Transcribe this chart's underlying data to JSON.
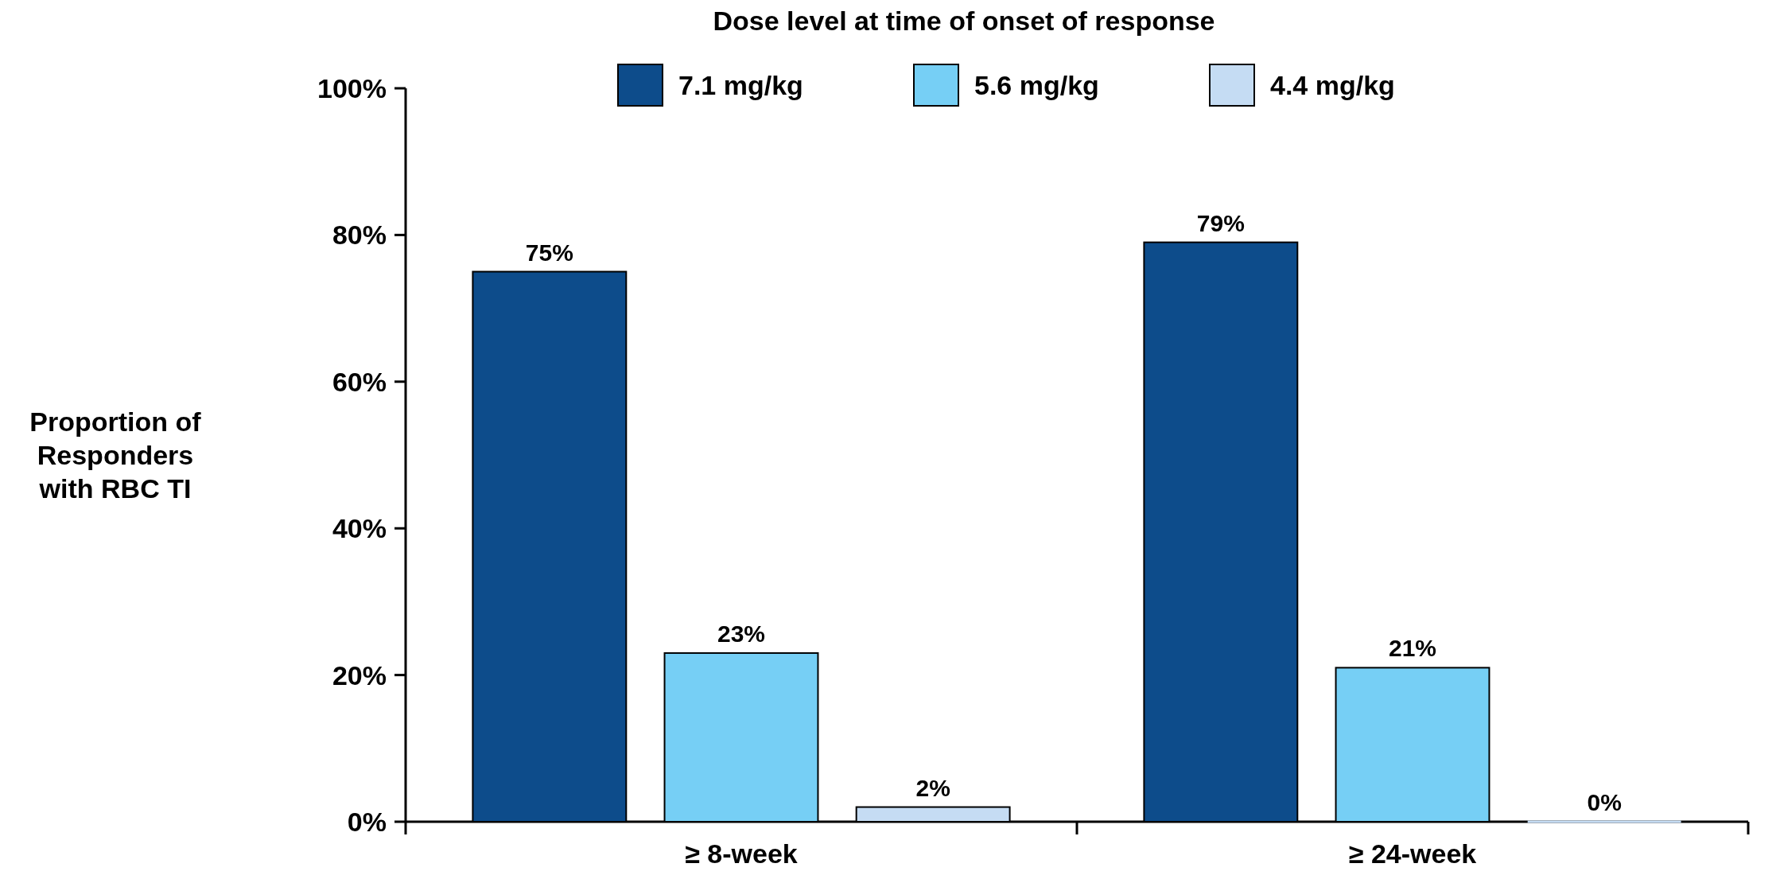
{
  "chart_data": {
    "type": "bar",
    "legend_title": "Dose level at time of onset of response",
    "ylabel": "Proportion of Responders with RBC TI",
    "categories": [
      "≥ 8-week",
      "≥ 24-week"
    ],
    "series": [
      {
        "name": "7.1 mg/kg",
        "color": "#0d4c8b",
        "values": [
          75,
          79
        ],
        "value_labels": [
          "75%",
          "79%"
        ]
      },
      {
        "name": "5.6 mg/kg",
        "color": "#76cff5",
        "values": [
          23,
          21
        ],
        "value_labels": [
          "23%",
          "21%"
        ]
      },
      {
        "name": "4.4 mg/kg",
        "color": "#c5dcf3",
        "values": [
          2,
          0
        ],
        "value_labels": [
          "2%",
          "0%"
        ]
      }
    ],
    "ylim": [
      0,
      100
    ],
    "yticks": [
      {
        "value": 0,
        "label": "0%"
      },
      {
        "value": 20,
        "label": "20%"
      },
      {
        "value": 40,
        "label": "40%"
      },
      {
        "value": 60,
        "label": "60%"
      },
      {
        "value": 80,
        "label": "80%"
      },
      {
        "value": 100,
        "label": "100%"
      }
    ],
    "grid": false,
    "legend": "top"
  }
}
